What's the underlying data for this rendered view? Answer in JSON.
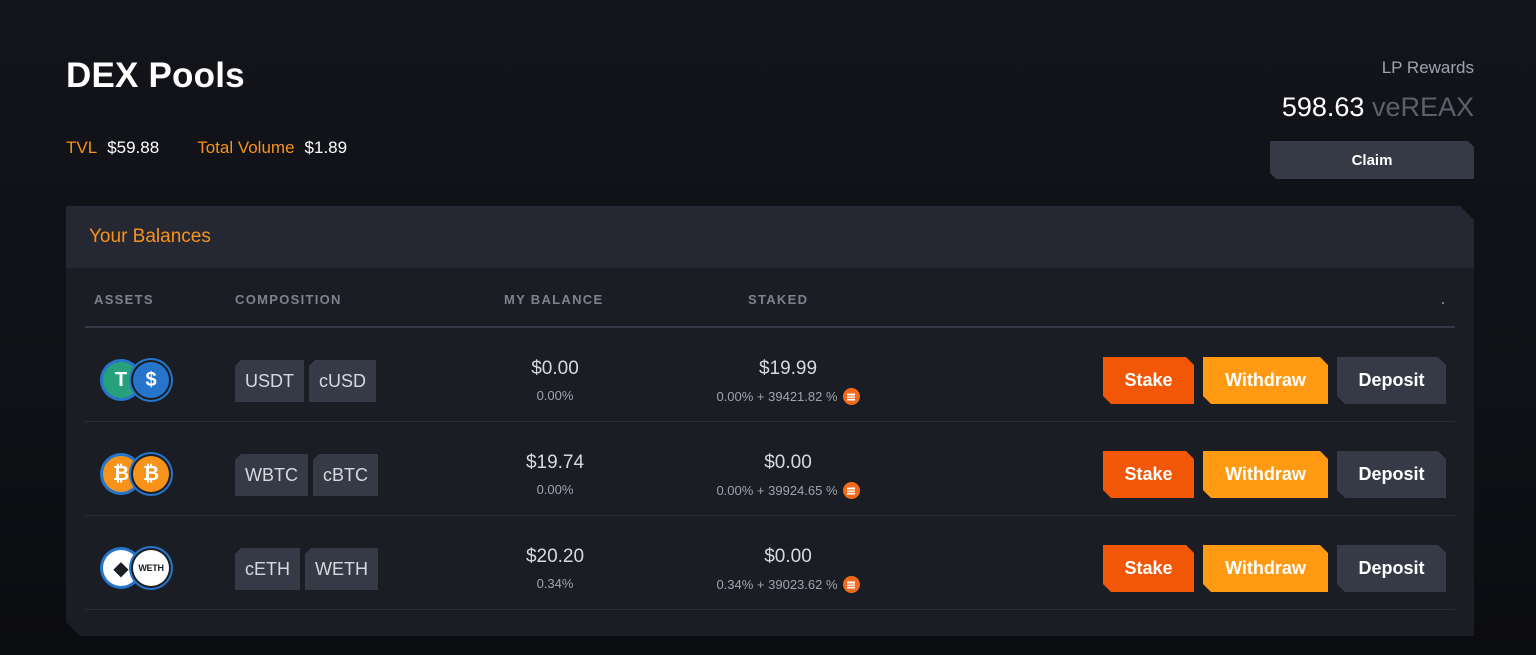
{
  "header": {
    "title": "DEX Pools",
    "tvl_label": "TVL",
    "tvl_value": "$59.88",
    "volume_label": "Total Volume",
    "volume_value": "$1.89"
  },
  "rewards": {
    "label": "LP Rewards",
    "amount": "598.63",
    "unit": "veREAX",
    "claim_label": "Claim"
  },
  "balances": {
    "title": "Your Balances",
    "columns": [
      "ASSETS",
      "COMPOSITION",
      "MY BALANCE",
      "STAKED",
      "."
    ],
    "rows": [
      {
        "icons": [
          {
            "name": "usdt-icon",
            "glyph": "T",
            "color": "#26a17b"
          },
          {
            "name": "cusd-icon",
            "glyph": "$",
            "color": "#2775ca"
          }
        ],
        "tokens": [
          "USDT",
          "cUSD"
        ],
        "balance": "$0.00",
        "balance_pct": "0.00%",
        "staked": "$19.99",
        "staked_apr": "0.00% + 39421.82 %"
      },
      {
        "icons": [
          {
            "name": "wbtc-icon",
            "glyph": "₿",
            "color": "#f7931a"
          },
          {
            "name": "cbtc-icon",
            "glyph": "₿",
            "color": "#f7931a"
          }
        ],
        "tokens": [
          "WBTC",
          "cBTC"
        ],
        "balance": "$19.74",
        "balance_pct": "0.00%",
        "staked": "$0.00",
        "staked_apr": "0.00% + 39924.65 %"
      },
      {
        "icons": [
          {
            "name": "ceth-icon",
            "glyph": "◆",
            "color": "#ffffff"
          },
          {
            "name": "weth-icon",
            "glyph": "WETH",
            "color": "#ffffff"
          }
        ],
        "tokens": [
          "cETH",
          "WETH"
        ],
        "balance": "$20.20",
        "balance_pct": "0.34%",
        "staked": "$0.00",
        "staked_apr": "0.34% + 39023.62 %"
      }
    ],
    "actions": {
      "stake": "Stake",
      "withdraw": "Withdraw",
      "deposit": "Deposit"
    }
  },
  "colors": {
    "accent": "#f7931a",
    "stake": "#f25708",
    "withdraw": "#ff9a12",
    "neutral": "#363a46"
  }
}
